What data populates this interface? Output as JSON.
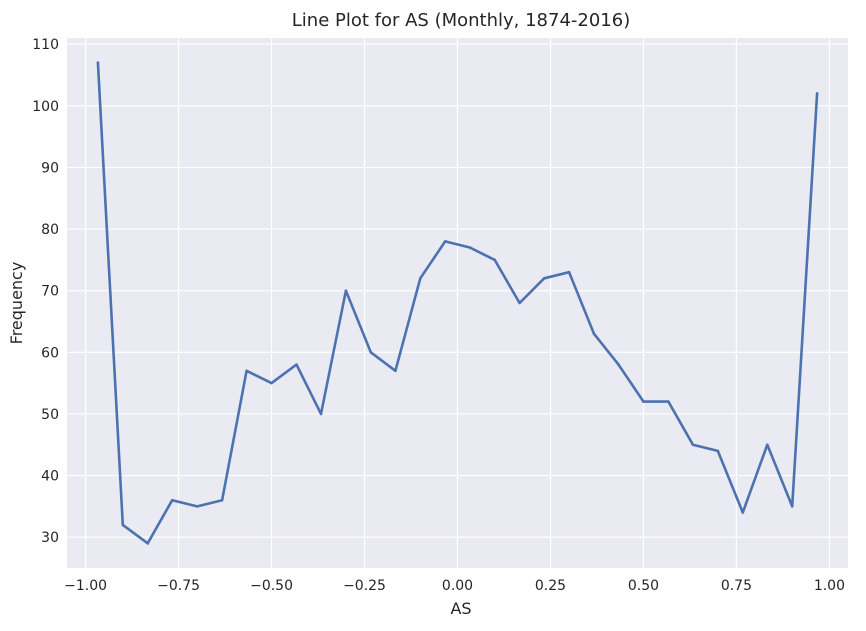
{
  "chart_data": {
    "type": "line",
    "title": "Line Plot for AS (Monthly, 1874-2016)",
    "xlabel": "AS",
    "ylabel": "Frequency",
    "xlim": [
      -1.05,
      1.05
    ],
    "ylim": [
      25,
      111
    ],
    "grid": true,
    "x_ticks": [
      -1.0,
      -0.75,
      -0.5,
      -0.25,
      0.0,
      0.25,
      0.5,
      0.75,
      1.0
    ],
    "x_tick_labels": [
      "−1.00",
      "−0.75",
      "−0.50",
      "−0.25",
      "0.00",
      "0.25",
      "0.50",
      "0.75",
      "1.00"
    ],
    "y_ticks": [
      30,
      40,
      50,
      60,
      70,
      80,
      90,
      100,
      110
    ],
    "y_tick_labels": [
      "30",
      "40",
      "50",
      "60",
      "70",
      "80",
      "90",
      "100",
      "110"
    ],
    "line_color": "#4c72b0",
    "background_color": "#eaeaf2",
    "x": [
      -0.967,
      -0.9,
      -0.833,
      -0.767,
      -0.7,
      -0.633,
      -0.567,
      -0.5,
      -0.433,
      -0.367,
      -0.3,
      -0.233,
      -0.167,
      -0.1,
      -0.033,
      0.033,
      0.1,
      0.167,
      0.233,
      0.3,
      0.367,
      0.433,
      0.5,
      0.567,
      0.633,
      0.7,
      0.767,
      0.833,
      0.9,
      0.967
    ],
    "values": [
      107,
      32,
      29,
      36,
      35,
      36,
      57,
      55,
      58,
      50,
      70,
      60,
      57,
      72,
      78,
      77,
      75,
      68,
      72,
      73,
      63,
      58,
      52,
      52,
      45,
      44,
      34,
      45,
      35,
      102
    ]
  }
}
